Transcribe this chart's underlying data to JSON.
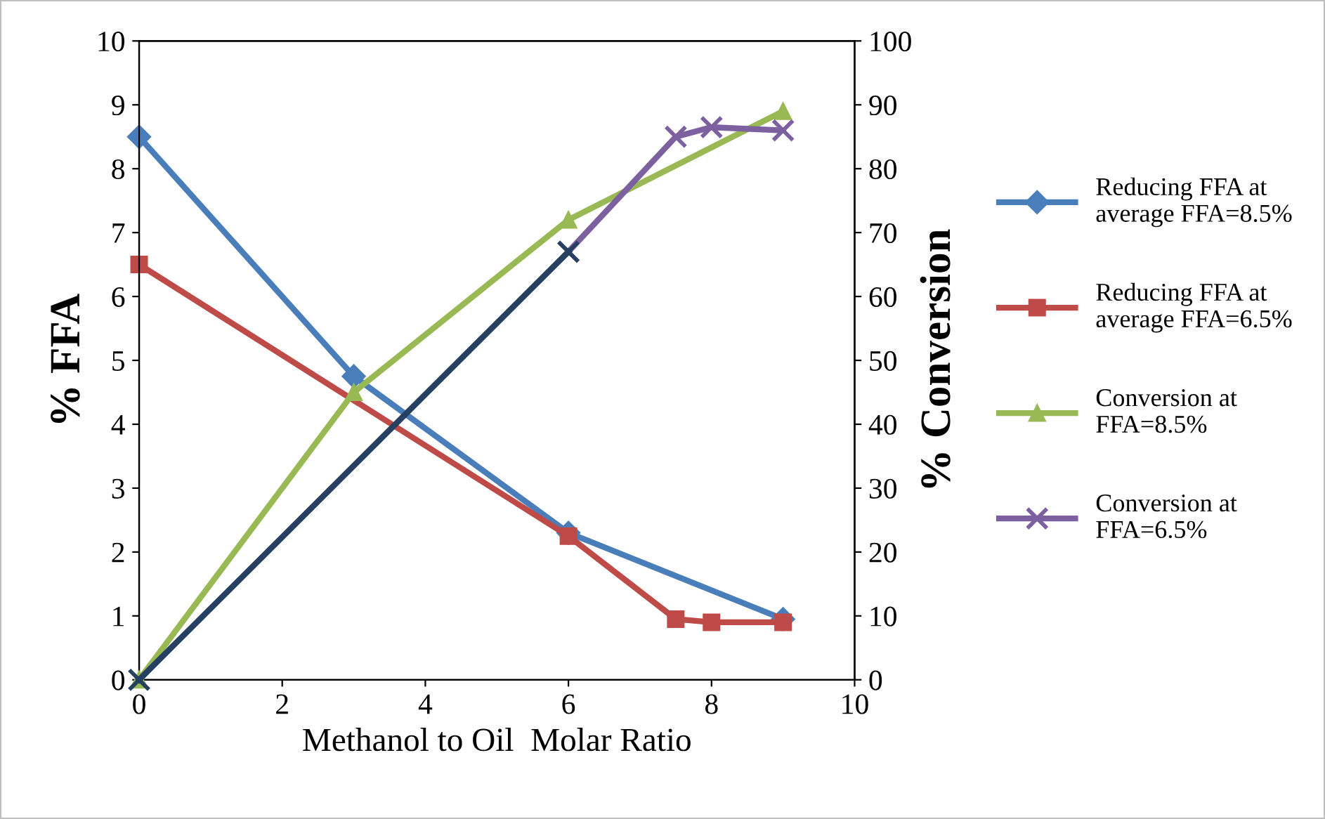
{
  "chart_data": {
    "type": "line",
    "xlabel": "Methanol to Oil  Molar Ratio",
    "ylabel": "% FFA",
    "y2label": "% Conversion",
    "xlim": [
      0,
      10
    ],
    "xticks": [
      0,
      2,
      4,
      6,
      8,
      10
    ],
    "ylim": [
      0,
      10
    ],
    "yticks": [
      0,
      1,
      2,
      3,
      4,
      5,
      6,
      7,
      8,
      9,
      10
    ],
    "y2lim": [
      0,
      100
    ],
    "y2ticks": [
      0,
      10,
      20,
      30,
      40,
      50,
      60,
      70,
      80,
      90,
      100
    ],
    "grid": false,
    "legend": "right",
    "series": [
      {
        "name": "Reducing FFA at\naverage FFA=8.5%",
        "color": "#4a7ebb",
        "marker": "diamond",
        "x": [
          0,
          3,
          6,
          9
        ],
        "values": [
          8.5,
          4.75,
          2.3,
          0.95
        ]
      },
      {
        "name": "Reducing FFA at\naverage FFA=6.5%",
        "color": "#be4b48",
        "marker": "square",
        "x": [
          0,
          6,
          7.5,
          8,
          9
        ],
        "values": [
          6.5,
          2.25,
          0.95,
          0.9,
          0.9
        ]
      },
      {
        "name": "Conversion at\nFFA=8.5%",
        "color": "#98b954",
        "marker": "triangle",
        "axis": "y2",
        "x": [
          0,
          3,
          6,
          9
        ],
        "values": [
          0,
          45,
          72,
          89
        ]
      },
      {
        "name": "Conversion at\nFFA=6.5%",
        "color": "#7d60a0",
        "marker": "cross",
        "axis": "y2",
        "x": [
          6,
          7.5,
          8,
          9
        ],
        "values": [
          67,
          85,
          86.5,
          86
        ]
      },
      {
        "color": "#254061",
        "marker": "cross",
        "axis": "y2",
        "x": [
          0,
          6
        ],
        "values": [
          0,
          67
        ]
      }
    ]
  }
}
